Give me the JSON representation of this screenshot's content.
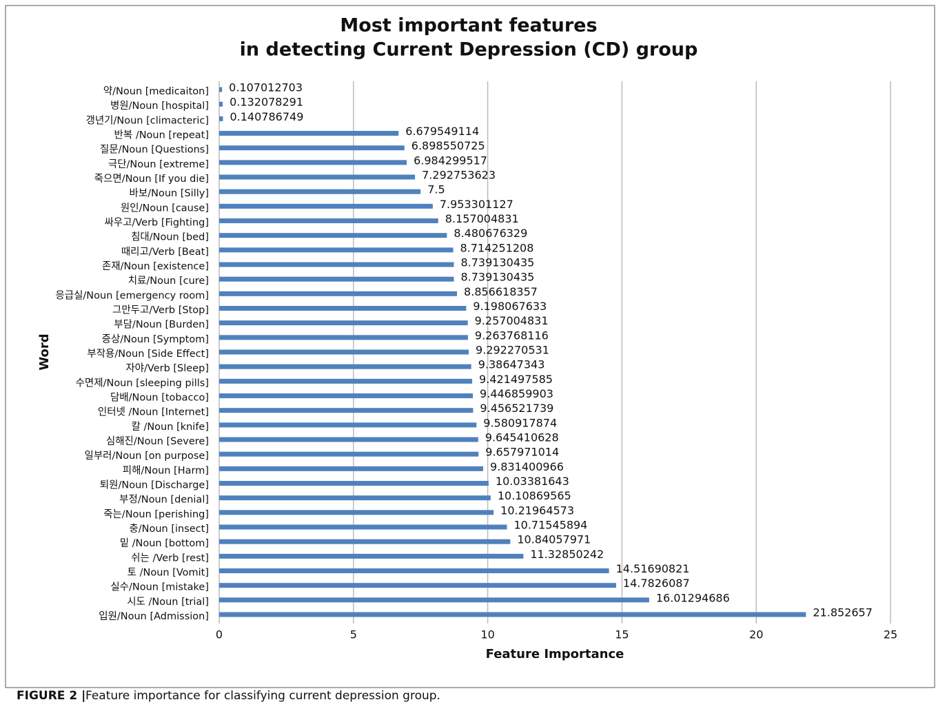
{
  "chart_data": {
    "type": "barh",
    "title": [
      "Most important features",
      "in detecting Current Depression (CD) group"
    ],
    "xlabel": "Feature Importance",
    "ylabel": "Word",
    "categories": [
      "약/Noun [medicaiton]",
      "병원/Noun [hospital]",
      "갱년기/Noun [climacteric]",
      "반복 /Noun [repeat]",
      "질문/Noun [Questions]",
      "극단/Noun [extreme]",
      "죽으면/Noun [If you die]",
      "바보/Noun [Silly]",
      "원인/Noun [cause]",
      "싸우고/Verb [Fighting]",
      "침대/Noun [bed]",
      "때리고/Verb [Beat]",
      "존재/Noun [existence]",
      "치료/Noun [cure]",
      "응급실/Noun [emergency room]",
      "그만두고/Verb [Stop]",
      "부담/Noun [Burden]",
      "증상/Noun [Symptom]",
      "부작용/Noun [Side Effect]",
      "자야/Verb [Sleep]",
      "수면제/Noun [sleeping pills]",
      "담배/Noun [tobacco]",
      "인터넷 /Noun [Internet]",
      "칼 /Noun [knife]",
      "심해진/Noun [Severe]",
      "일부러/Noun [on purpose]",
      "피해/Noun [Harm]",
      "퇴원/Noun [Discharge]",
      "부정/Noun [denial]",
      "죽는/Noun [perishing]",
      "충/Noun [insect]",
      "밑 /Noun [bottom]",
      "쉬는 /Verb [rest]",
      "토 /Noun [Vomit]",
      "실수/Noun [mistake]",
      "시도 /Noun [trial]",
      "입원/Noun [Admission]"
    ],
    "values": [
      0.107012703,
      0.132078291,
      0.140786749,
      6.679549114,
      6.898550725,
      6.984299517,
      7.292753623,
      7.5,
      7.953301127,
      8.157004831,
      8.480676329,
      8.714251208,
      8.739130435,
      8.739130435,
      8.856618357,
      9.198067633,
      9.257004831,
      9.263768116,
      9.292270531,
      9.38647343,
      9.421497585,
      9.446859903,
      9.456521739,
      9.580917874,
      9.645410628,
      9.657971014,
      9.831400966,
      10.03381643,
      10.10869565,
      10.21964573,
      10.71545894,
      10.84057971,
      11.32850242,
      14.51690821,
      14.7826087,
      16.01294686,
      21.852657
    ],
    "color": "#4f81bd",
    "xlim": [
      0,
      25
    ],
    "xticks": [
      0,
      5,
      10,
      15,
      20,
      25
    ],
    "grid": true
  },
  "caption": {
    "label": "FIGURE 2 |",
    "text": "Feature importance for classifying current depression group."
  }
}
